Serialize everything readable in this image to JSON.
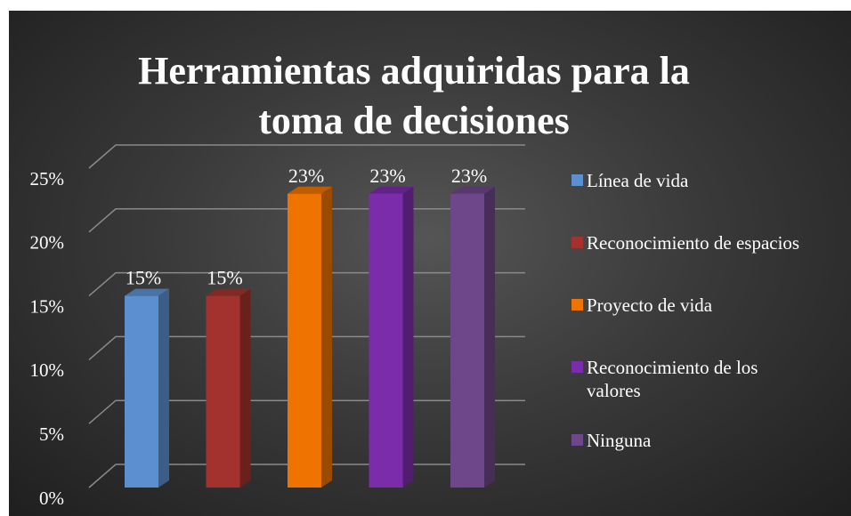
{
  "chart_data": {
    "type": "bar",
    "title": "Herramientas adquiridas para la toma de decisiones",
    "categories": [
      "Línea de vida",
      "Reconocimiento de espacios",
      "Proyecto de vida",
      "Reconocimiento de los valores",
      "Ninguna"
    ],
    "values": [
      15,
      15,
      23,
      23,
      23
    ],
    "value_labels": [
      "15%",
      "15%",
      "23%",
      "23%",
      "23%"
    ],
    "colors": [
      "#5b8fd0",
      "#a3322e",
      "#ee7300",
      "#7b2cab",
      "#6d4789"
    ],
    "ylim": [
      0,
      25
    ],
    "yticks": [
      {
        "value": 0,
        "label": "0%"
      },
      {
        "value": 5,
        "label": "5%"
      },
      {
        "value": 10,
        "label": "10%"
      },
      {
        "value": 15,
        "label": "15%"
      },
      {
        "value": 20,
        "label": "20%"
      },
      {
        "value": 25,
        "label": "25%"
      }
    ],
    "grid": true,
    "legend": "right"
  }
}
